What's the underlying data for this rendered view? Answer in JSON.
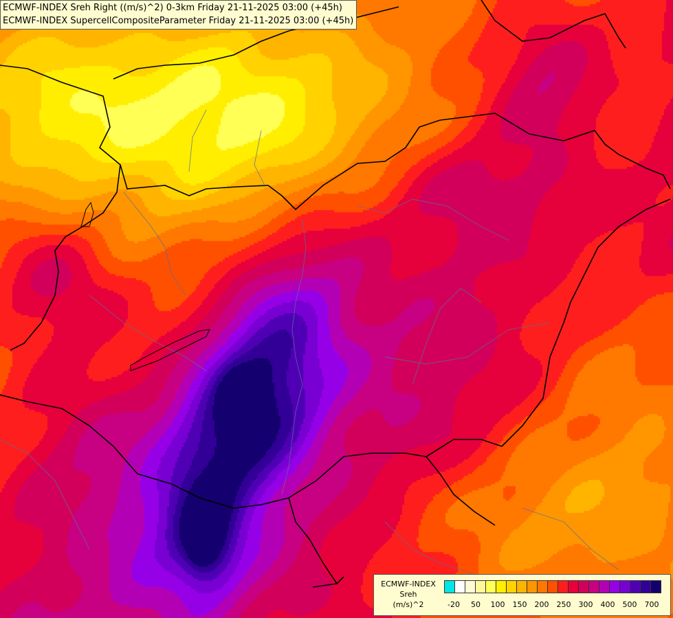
{
  "header": {
    "line1": "ECMWF-INDEX Sreh Right ((m/s)^2) 0-3km Friday 21-11-2025 03:00 (+45h)",
    "line2": "ECMWF-INDEX SupercellCompositeParameter Friday 21-11-2025 03:00 (+45h)"
  },
  "legend": {
    "title1": "ECMWF-INDEX",
    "title2": "Sreh",
    "title3": "(m/s)^2",
    "colors": [
      "#00e6e6",
      "#ffffff",
      "#fffbd6",
      "#fff79a",
      "#ffff55",
      "#ffee00",
      "#ffd200",
      "#ffb400",
      "#ff9600",
      "#ff7800",
      "#ff5000",
      "#ff1e1e",
      "#e6003c",
      "#d2005a",
      "#c80082",
      "#b400b4",
      "#9600e6",
      "#7800d2",
      "#5000b4",
      "#320096",
      "#14006e"
    ],
    "ticks": [
      "-20",
      "50",
      "100",
      "150",
      "200",
      "250",
      "300",
      "400",
      "500",
      "700"
    ]
  }
}
